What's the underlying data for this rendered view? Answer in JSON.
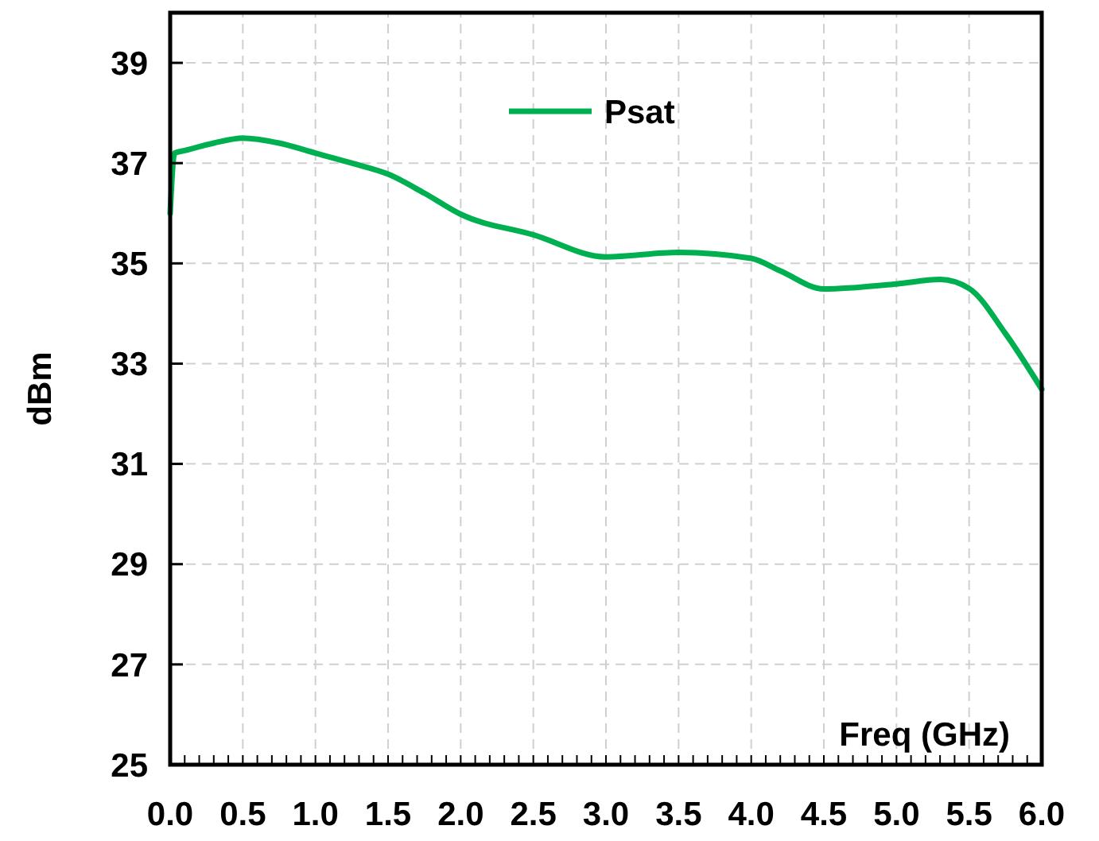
{
  "chart_data": {
    "type": "line",
    "xlabel": "Freq (GHz)",
    "ylabel": "dBm",
    "x": [
      0,
      0.03,
      0.1,
      0.3,
      0.5,
      0.75,
      1.0,
      1.25,
      1.5,
      1.75,
      2.0,
      2.5,
      3.0,
      3.5,
      4.0,
      4.2,
      4.5,
      5.0,
      5.3,
      5.5,
      5.75,
      6.0
    ],
    "series": [
      {
        "name": "Psat",
        "color": "#00b050",
        "values": [
          36.0,
          37.2,
          37.25,
          37.4,
          37.5,
          37.4,
          37.2,
          37.0,
          36.78,
          36.4,
          35.98,
          35.57,
          35.13,
          35.22,
          35.1,
          34.85,
          34.49,
          34.59,
          34.68,
          34.5,
          33.6,
          32.49
        ]
      }
    ],
    "xlim": [
      0,
      6
    ],
    "xticks": [
      {
        "value": 0,
        "label": "0.0"
      },
      0.5,
      {
        "value": 1,
        "label": "1.0"
      },
      1.5,
      {
        "value": 2,
        "label": "2.0"
      },
      2.5,
      {
        "value": 3,
        "label": "3.0"
      },
      3.5,
      {
        "value": 4,
        "label": "4.0"
      },
      4.5,
      {
        "value": 5,
        "label": "5.0"
      },
      5.5,
      {
        "value": 6,
        "label": "6.0"
      }
    ],
    "ylim": [
      25,
      40
    ],
    "yticks": [
      25,
      27,
      29,
      31,
      33,
      35,
      37,
      39
    ],
    "grid": true,
    "legend": "top",
    "marker": "none",
    "line_style": "solid"
  }
}
